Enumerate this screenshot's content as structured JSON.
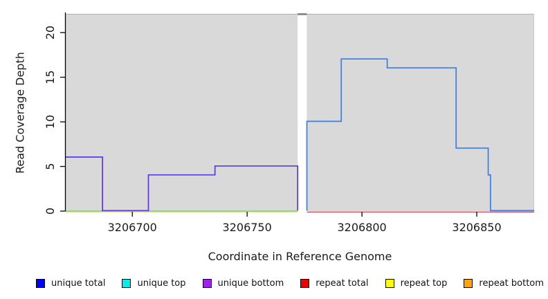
{
  "figure": {
    "background": "#FFFFFF"
  },
  "chart_data": {
    "type": "line",
    "subtype": "step-coverage",
    "title": "",
    "xlabel": "Coordinate in Reference Genome",
    "ylabel": "Read Coverage Depth",
    "xlim": [
      3206671,
      3206875
    ],
    "ylim": [
      0,
      22.1
    ],
    "xticks": [
      3206700,
      3206750,
      3206800,
      3206850
    ],
    "yticks": [
      0,
      5,
      10,
      15,
      20
    ],
    "plot_background": "#D9D9D9",
    "panel_top_edge_color": "#ADADAD",
    "panel_right_edge_color": "#C6C6C6",
    "axis_color": "#000000",
    "grid": false,
    "gap_region": {
      "x0": 3206772,
      "x1": 3206776,
      "fill": "#FFFFFF",
      "top_mark_color": "#8E8E8E"
    },
    "series": [
      {
        "name": "repeat-top-zero-left",
        "color": "#E2E29A",
        "width": 1.4,
        "dy": 1.3,
        "points": [
          [
            3206671,
            0
          ],
          [
            3206772,
            0
          ]
        ]
      },
      {
        "name": "unique-top-zero-left",
        "color": "#85C785",
        "width": 1.4,
        "dy": 0,
        "points": [
          [
            3206671,
            0
          ],
          [
            3206772,
            0
          ]
        ]
      },
      {
        "name": "unique-bottom-left",
        "color": "#5D38DD",
        "width": 1.7,
        "dy": -0.7,
        "points": [
          [
            3206671,
            6
          ],
          [
            3206687,
            6
          ],
          [
            3206687,
            0
          ],
          [
            3206707,
            0
          ],
          [
            3206707,
            4
          ],
          [
            3206736,
            4
          ],
          [
            3206736,
            5
          ],
          [
            3206772,
            5
          ],
          [
            3206772,
            0
          ]
        ]
      },
      {
        "name": "repeat-total-zero-right",
        "color": "#E04B5E",
        "width": 1.4,
        "dy": 1.3,
        "points": [
          [
            3206776,
            0
          ],
          [
            3206875,
            0
          ]
        ]
      },
      {
        "name": "unique-total-right",
        "color": "#3F82EA",
        "width": 1.8,
        "dy": -0.7,
        "points": [
          [
            3206776,
            0
          ],
          [
            3206776,
            10
          ],
          [
            3206791,
            10
          ],
          [
            3206791,
            17
          ],
          [
            3206811,
            17
          ],
          [
            3206811,
            16
          ],
          [
            3206841,
            16
          ],
          [
            3206841,
            7
          ],
          [
            3206855,
            7
          ],
          [
            3206855,
            4
          ],
          [
            3206856,
            4
          ],
          [
            3206856,
            0
          ],
          [
            3206875,
            0
          ]
        ]
      }
    ],
    "legend_position": "bottom",
    "legend": [
      {
        "label": "unique total",
        "color": "#0000FF"
      },
      {
        "label": "unique top",
        "color": "#00EEEE"
      },
      {
        "label": "unique bottom",
        "color": "#A020F0"
      },
      {
        "label": "repeat total",
        "color": "#EE0000"
      },
      {
        "label": "repeat top",
        "color": "#FFFF00"
      },
      {
        "label": "repeat bottom",
        "color": "#FFA500"
      }
    ]
  }
}
